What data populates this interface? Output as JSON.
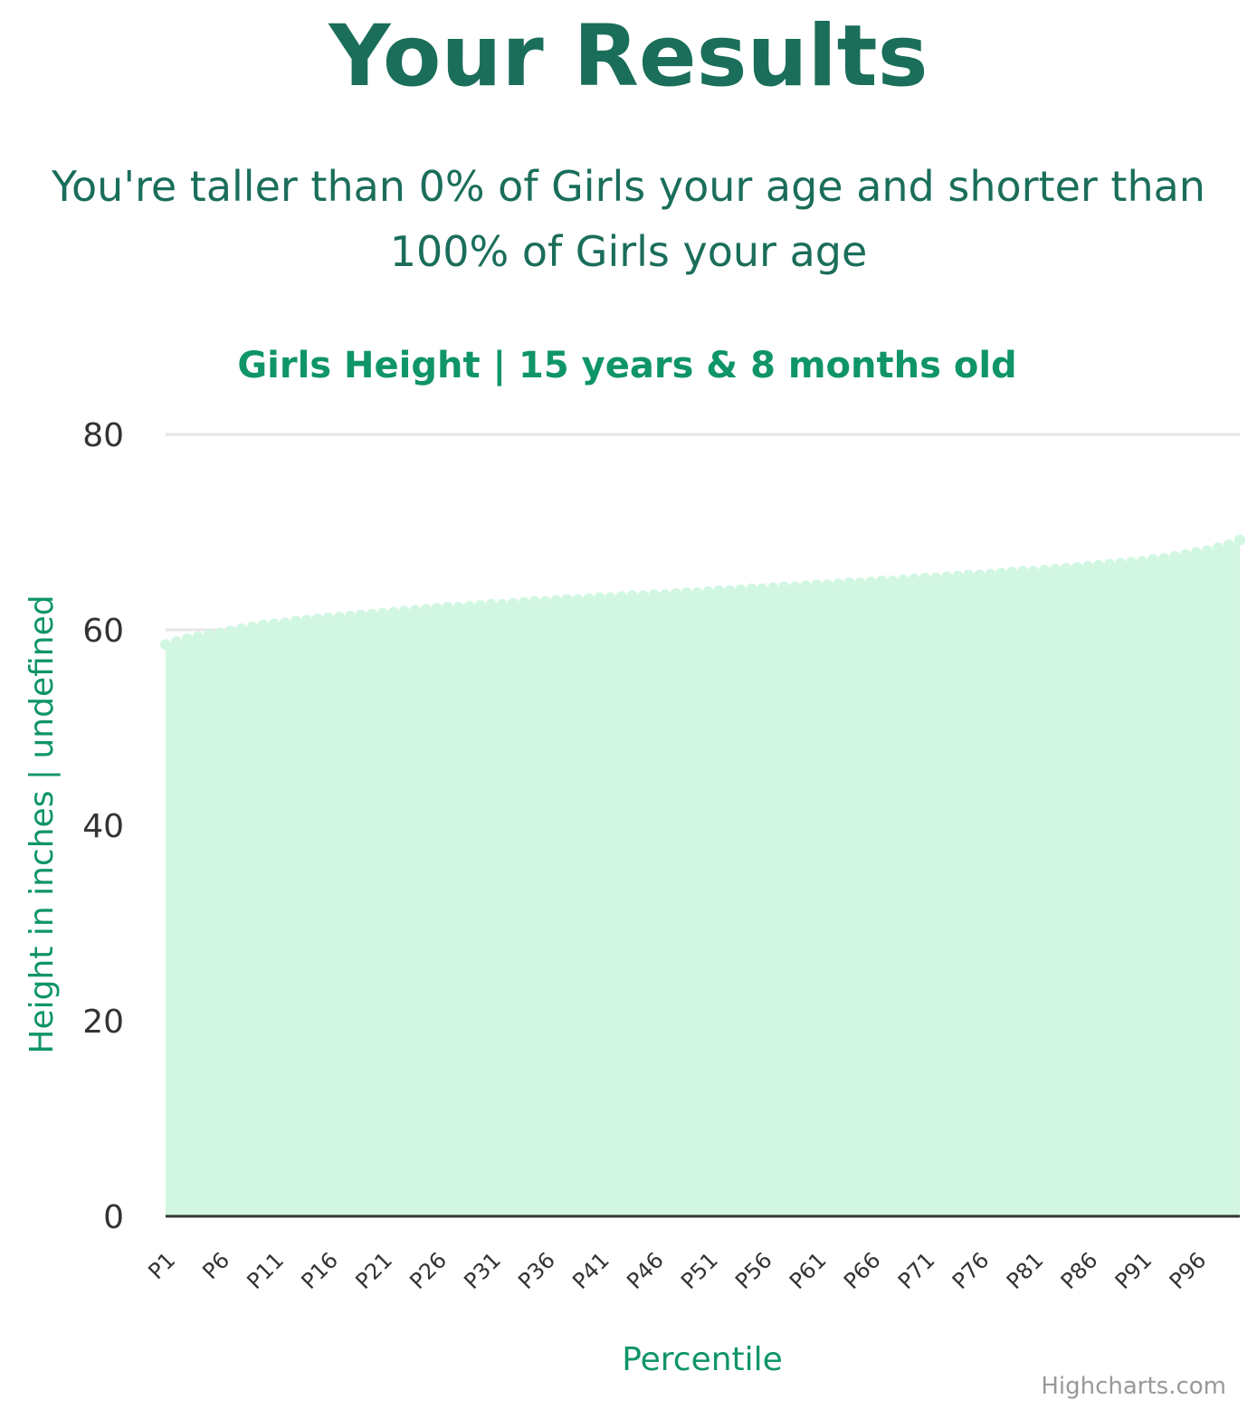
{
  "page": {
    "title": "Your Results",
    "result_text": "You're taller than 0% of Girls your age and shorter than 100% of Girls your age"
  },
  "colors": {
    "heading": "#1a6e5a",
    "accent": "#0f9566",
    "area_fill": "#d1f7e2",
    "gridline": "#e6e6e6",
    "axis_line": "#333333"
  },
  "chart_data": {
    "type": "area",
    "title": "Girls Height | 15 years & 8 months old",
    "xlabel": "Percentile",
    "ylabel": "Height in inches | undefined",
    "ylim": [
      0,
      80
    ],
    "y_ticks": [
      0,
      20,
      40,
      60,
      80
    ],
    "x_tick_labels": [
      "P1",
      "P6",
      "P11",
      "P16",
      "P21",
      "P26",
      "P31",
      "P36",
      "P41",
      "P46",
      "P51",
      "P56",
      "P61",
      "P66",
      "P71",
      "P76",
      "P81",
      "P86",
      "P91",
      "P96"
    ],
    "grid": true,
    "legend": "none",
    "series": [
      {
        "x": [
          "P1",
          "P2",
          "P3",
          "P4",
          "P5",
          "P6",
          "P7",
          "P8",
          "P9",
          "P10",
          "P11",
          "P12",
          "P13",
          "P14",
          "P15",
          "P16",
          "P17",
          "P18",
          "P19",
          "P20",
          "P21",
          "P22",
          "P23",
          "P24",
          "P25",
          "P26",
          "P27",
          "P28",
          "P29",
          "P30",
          "P31",
          "P32",
          "P33",
          "P34",
          "P35",
          "P36",
          "P37",
          "P38",
          "P39",
          "P40",
          "P41",
          "P42",
          "P43",
          "P44",
          "P45",
          "P46",
          "P47",
          "P48",
          "P49",
          "P50",
          "P51",
          "P52",
          "P53",
          "P54",
          "P55",
          "P56",
          "P57",
          "P58",
          "P59",
          "P60",
          "P61",
          "P62",
          "P63",
          "P64",
          "P65",
          "P66",
          "P67",
          "P68",
          "P69",
          "P70",
          "P71",
          "P72",
          "P73",
          "P74",
          "P75",
          "P76",
          "P77",
          "P78",
          "P79",
          "P80",
          "P81",
          "P82",
          "P83",
          "P84",
          "P85",
          "P86",
          "P87",
          "P88",
          "P89",
          "P90",
          "P91",
          "P92",
          "P93",
          "P94",
          "P95",
          "P96",
          "P97",
          "P98",
          "P99",
          "P100"
        ],
        "values": [
          58.5,
          58.8,
          59.1,
          59.3,
          59.5,
          59.7,
          59.9,
          60.1,
          60.3,
          60.5,
          60.6,
          60.7,
          60.9,
          61.0,
          61.1,
          61.2,
          61.3,
          61.4,
          61.5,
          61.6,
          61.7,
          61.8,
          61.9,
          62.0,
          62.1,
          62.2,
          62.3,
          62.3,
          62.4,
          62.5,
          62.6,
          62.6,
          62.7,
          62.8,
          62.9,
          62.9,
          63.0,
          63.1,
          63.1,
          63.2,
          63.3,
          63.3,
          63.4,
          63.5,
          63.5,
          63.6,
          63.6,
          63.7,
          63.8,
          63.8,
          63.9,
          64.0,
          64.0,
          64.1,
          64.2,
          64.2,
          64.3,
          64.4,
          64.4,
          64.5,
          64.6,
          64.6,
          64.7,
          64.8,
          64.8,
          64.9,
          65.0,
          65.0,
          65.1,
          65.2,
          65.3,
          65.3,
          65.4,
          65.5,
          65.6,
          65.6,
          65.7,
          65.8,
          65.9,
          66.0,
          66.0,
          66.1,
          66.2,
          66.3,
          66.4,
          66.5,
          66.6,
          66.7,
          66.8,
          66.9,
          67.0,
          67.2,
          67.3,
          67.5,
          67.7,
          67.9,
          68.1,
          68.4,
          68.7,
          69.2
        ]
      }
    ],
    "credits": "Highcharts.com"
  }
}
